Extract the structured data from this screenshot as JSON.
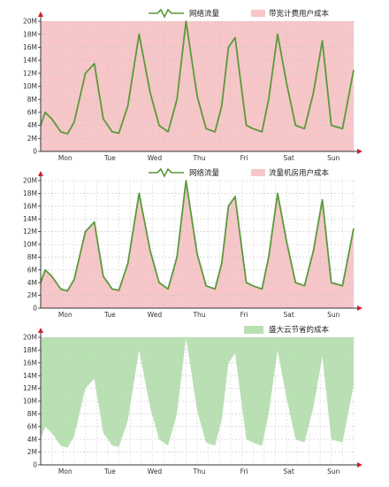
{
  "colors": {
    "line": "#5a9a3a",
    "cost_fill": "#f7c6c8",
    "saving_fill": "#b9e0b3",
    "grid": "#c8c8c8",
    "axis": "#333333",
    "arrow": "#d0222a"
  },
  "chart_data": [
    {
      "type": "area",
      "title": "",
      "xlabel": "",
      "ylabel": "",
      "ylim": [
        0,
        20
      ],
      "y_unit": "M",
      "y_ticks": [
        "0",
        "2M",
        "4M",
        "6M",
        "8M",
        "10M",
        "12M",
        "14M",
        "16M",
        "18M",
        "20M"
      ],
      "x_ticks": [
        "Mon",
        "Tue",
        "Wed",
        "Thu",
        "Fri",
        "Sat",
        "Sun"
      ],
      "grid": true,
      "legend_position": "top-right",
      "legend": [
        {
          "label": "网络流量",
          "kind": "line"
        },
        {
          "label": "带宽计费用户成本",
          "kind": "cost"
        }
      ],
      "background_area": {
        "name": "带宽计费用户成本",
        "value": 20
      },
      "series": [
        {
          "name": "网络流量",
          "kind": "line",
          "x": [
            0,
            0.1,
            0.25,
            0.45,
            0.6,
            0.75,
            1,
            1.2,
            1.4,
            1.6,
            1.75,
            1.95,
            2.2,
            2.45,
            2.65,
            2.85,
            3.05,
            3.25,
            3.5,
            3.7,
            3.9,
            4.05,
            4.2,
            4.35,
            4.45,
            4.6,
            4.75,
            4.95,
            5.1,
            5.3,
            5.5,
            5.7,
            5.9,
            6.1,
            6.3,
            6.5,
            6.75,
            7
          ],
          "y": [
            4,
            6,
            5,
            3,
            2.7,
            4.5,
            12,
            13.5,
            5,
            3,
            2.8,
            7,
            18,
            9,
            4,
            3,
            8,
            20,
            8.5,
            3.5,
            3,
            7,
            16,
            17.5,
            12,
            4,
            3.5,
            3,
            8,
            18,
            10.5,
            4,
            3.5,
            9,
            17,
            4,
            3.5,
            12.5
          ]
        }
      ]
    },
    {
      "type": "area",
      "title": "",
      "xlabel": "",
      "ylabel": "",
      "ylim": [
        0,
        20
      ],
      "y_unit": "M",
      "y_ticks": [
        "0",
        "2M",
        "4M",
        "6M",
        "8M",
        "10M",
        "12M",
        "14M",
        "16M",
        "18M",
        "20M"
      ],
      "x_ticks": [
        "Mon",
        "Tue",
        "Wed",
        "Thu",
        "Fri",
        "Sat",
        "Sun"
      ],
      "grid": true,
      "legend_position": "top-right",
      "legend": [
        {
          "label": "网络流量",
          "kind": "line"
        },
        {
          "label": "流量机房用户成本",
          "kind": "cost"
        }
      ],
      "series": [
        {
          "name": "网络流量",
          "kind": "line+area",
          "x": [
            0,
            0.1,
            0.25,
            0.45,
            0.6,
            0.75,
            1,
            1.2,
            1.4,
            1.6,
            1.75,
            1.95,
            2.2,
            2.45,
            2.65,
            2.85,
            3.05,
            3.25,
            3.5,
            3.7,
            3.9,
            4.05,
            4.2,
            4.35,
            4.45,
            4.6,
            4.75,
            4.95,
            5.1,
            5.3,
            5.5,
            5.7,
            5.9,
            6.1,
            6.3,
            6.5,
            6.75,
            7
          ],
          "y": [
            4,
            6,
            5,
            3,
            2.7,
            4.5,
            12,
            13.5,
            5,
            3,
            2.8,
            7,
            18,
            9,
            4,
            3,
            8,
            20,
            8.5,
            3.5,
            3,
            7,
            16,
            17.5,
            12,
            4,
            3.5,
            3,
            8,
            18,
            10.5,
            4,
            3.5,
            9,
            17,
            4,
            3.5,
            12.5
          ]
        }
      ]
    },
    {
      "type": "area",
      "title": "",
      "xlabel": "",
      "ylabel": "",
      "ylim": [
        0,
        20
      ],
      "y_unit": "M",
      "y_ticks": [
        "0",
        "2M",
        "4M",
        "6M",
        "8M",
        "10M",
        "12M",
        "14M",
        "16M",
        "18M",
        "20M"
      ],
      "x_ticks": [
        "Mon",
        "Tue",
        "Wed",
        "Thu",
        "Fri",
        "Sat",
        "Sun"
      ],
      "grid": true,
      "legend_position": "top-right",
      "legend": [
        {
          "label": "盛大云节省的成本",
          "kind": "saving"
        }
      ],
      "series": [
        {
          "name": "盛大云节省的成本",
          "kind": "area-above",
          "x": [
            0,
            0.1,
            0.25,
            0.45,
            0.6,
            0.75,
            1,
            1.2,
            1.4,
            1.6,
            1.75,
            1.95,
            2.2,
            2.45,
            2.65,
            2.85,
            3.05,
            3.25,
            3.5,
            3.7,
            3.9,
            4.05,
            4.2,
            4.35,
            4.45,
            4.6,
            4.75,
            4.95,
            5.1,
            5.3,
            5.5,
            5.7,
            5.9,
            6.1,
            6.3,
            6.5,
            6.75,
            7
          ],
          "y": [
            4,
            6,
            5,
            3,
            2.7,
            4.5,
            12,
            13.5,
            5,
            3,
            2.8,
            7,
            18,
            9,
            4,
            3,
            8,
            20,
            8.5,
            3.5,
            3,
            7,
            16,
            17.5,
            12,
            4,
            3.5,
            3,
            8,
            18,
            10.5,
            4,
            3.5,
            9,
            17,
            4,
            3.5,
            12.5
          ]
        }
      ]
    }
  ]
}
